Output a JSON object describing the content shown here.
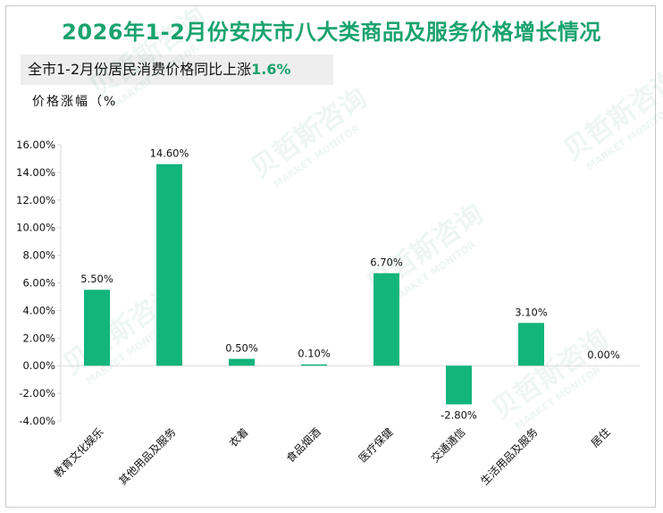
{
  "title": "2026年1-2月份安庆市八大类商品及服务价格增长情况",
  "subtitle": {
    "text": "全市1-2月份居民消费价格同比上涨",
    "highlight": "1.6%"
  },
  "unit_label": "价格涨幅（%",
  "watermark": {
    "cn": "贝哲斯咨询",
    "en": "MARKET MONITOR"
  },
  "colors": {
    "bar": "#12b57c",
    "title": "#1aa36e",
    "axis": "#d9d9d9"
  },
  "chart_data": {
    "type": "bar",
    "categories": [
      "教育文化娱乐",
      "其他用品及服务",
      "衣着",
      "食品烟酒",
      "医疗保健",
      "交通通信",
      "生活用品及服务",
      "居住"
    ],
    "values": [
      5.5,
      14.6,
      0.5,
      0.1,
      6.7,
      -2.8,
      3.1,
      0.0
    ],
    "value_labels": [
      "5.50%",
      "14.60%",
      "0.50%",
      "0.10%",
      "6.70%",
      "-2.80%",
      "3.10%",
      "0.00%"
    ],
    "ylim": [
      -4,
      16
    ],
    "yticks": [
      16,
      14,
      12,
      10,
      8,
      6,
      4,
      2,
      0,
      -2,
      -4
    ],
    "ytick_labels": [
      "16.00%",
      "14.00%",
      "12.00%",
      "10.00%",
      "8.00%",
      "6.00%",
      "4.00%",
      "2.00%",
      "0.00%",
      "-2.00%",
      "-4.00%"
    ],
    "grid": false,
    "legend": "none"
  }
}
